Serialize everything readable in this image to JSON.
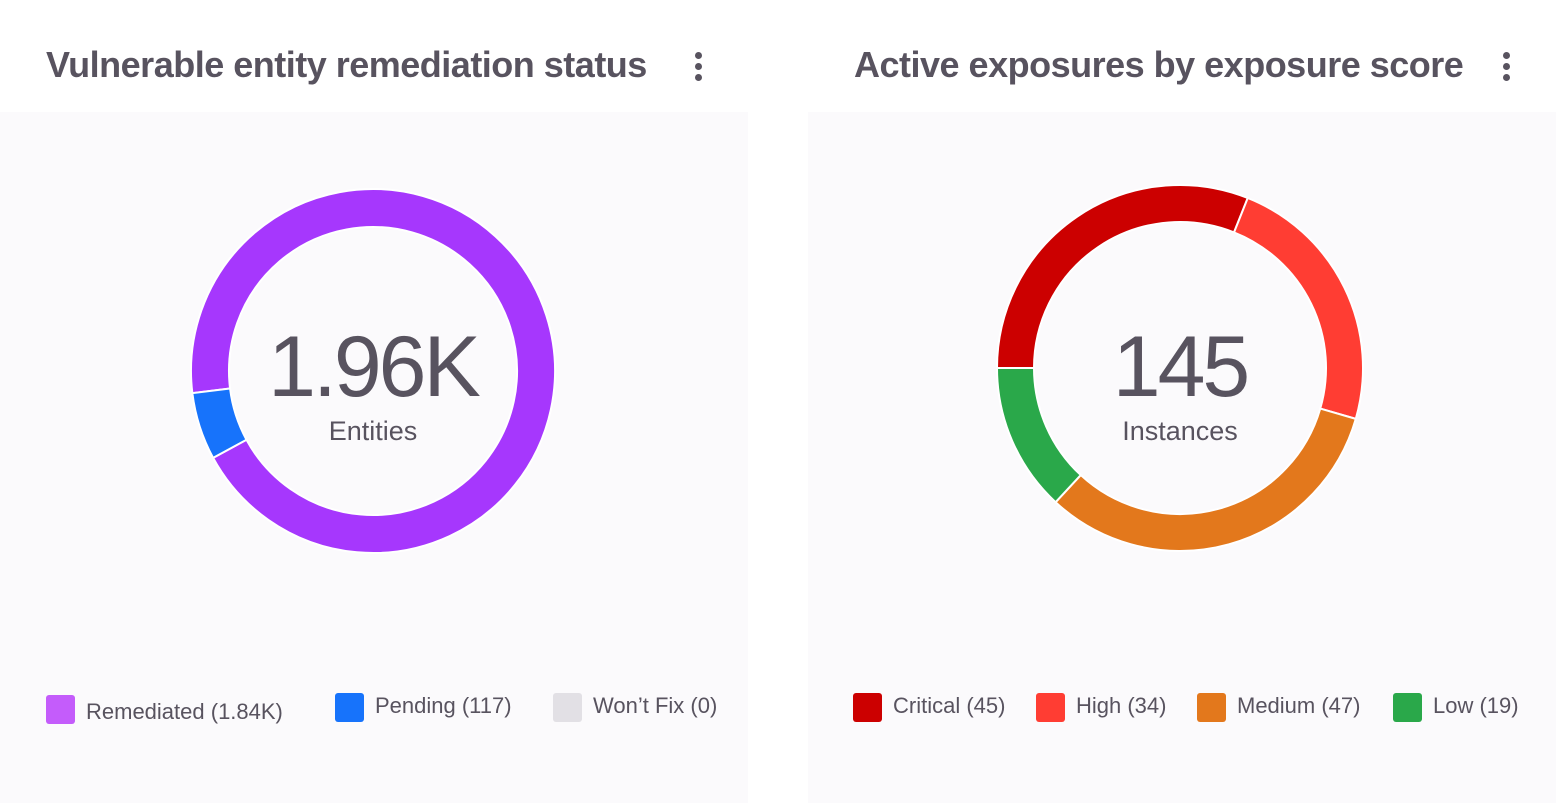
{
  "chart_data": [
    {
      "type": "pie",
      "variant": "donut",
      "title": "Vulnerable entity remediation status",
      "center_value": "1.96K",
      "center_label": "Entities",
      "slices": [
        {
          "name": "Remediated",
          "value": 1840,
          "legend": "Remediated (1.84K)",
          "color": "#a637fd"
        },
        {
          "name": "Pending",
          "value": 117,
          "legend": "Pending (117)",
          "color": "#1773fb"
        },
        {
          "name": "Won’t Fix",
          "value": 0,
          "legend": "Won’t Fix (0)",
          "color": "#e2e0e5"
        }
      ],
      "legend_position": "bottom"
    },
    {
      "type": "pie",
      "variant": "donut",
      "title": "Active exposures by exposure score",
      "center_value": "145",
      "center_label": "Instances",
      "slices": [
        {
          "name": "Critical",
          "value": 45,
          "legend": "Critical (45)",
          "color": "#cc0000"
        },
        {
          "name": "High",
          "value": 34,
          "legend": "High (34)",
          "color": "#ff3d33"
        },
        {
          "name": "Medium",
          "value": 47,
          "legend": "Medium (47)",
          "color": "#e3781c"
        },
        {
          "name": "Low",
          "value": 19,
          "legend": "Low (19)",
          "color": "#2aa84a"
        }
      ],
      "legend_position": "bottom"
    }
  ],
  "icons": {
    "menu": "kebab-menu-icon"
  }
}
